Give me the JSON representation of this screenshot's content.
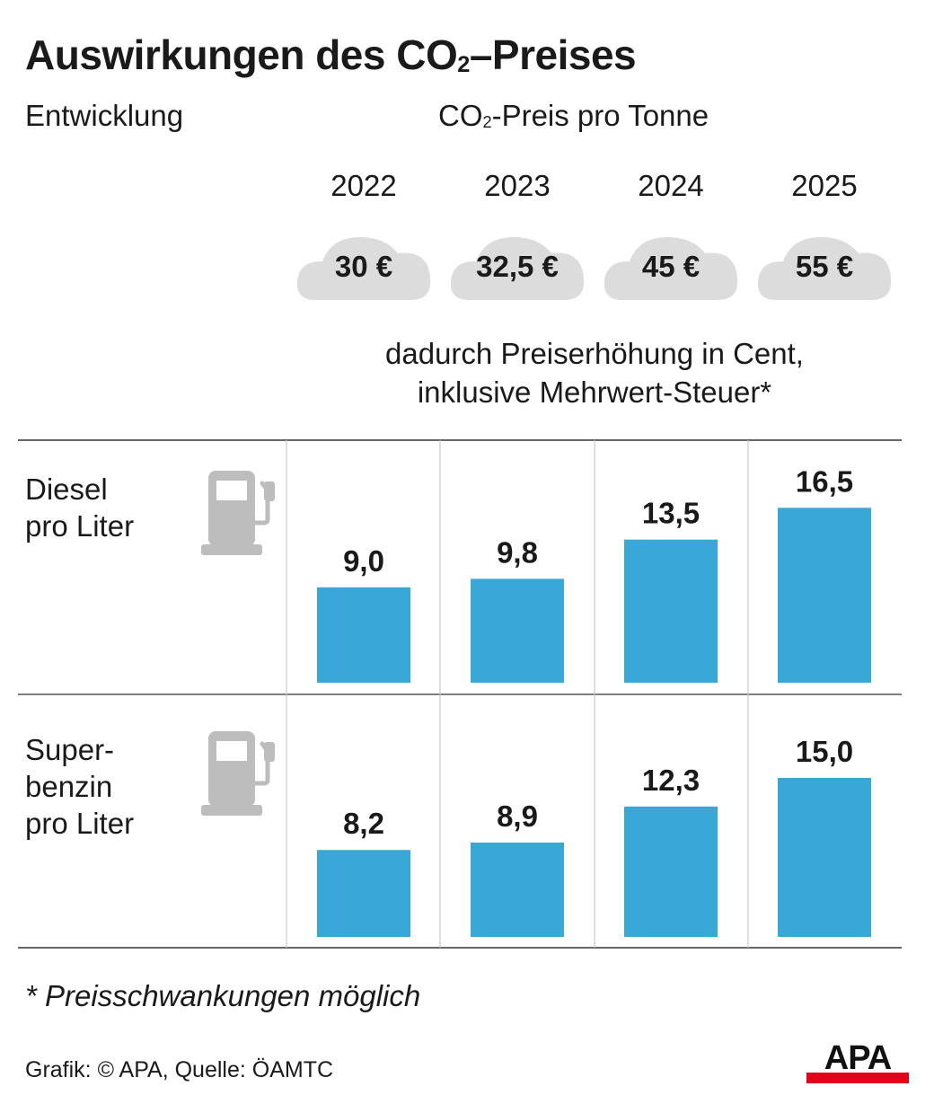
{
  "title_main": "Auswirkungen des CO",
  "title_sub": "2",
  "title_rest": "–Preises",
  "section_label": "Entwicklung",
  "price_header_main": "CO",
  "price_header_sub": "2",
  "price_header_rest": "-Preis pro Tonne",
  "years": [
    "2022",
    "2023",
    "2024",
    "2025"
  ],
  "co2_prices": [
    "30 €",
    "32,5 €",
    "45 €",
    "55 €"
  ],
  "note_line1": "dadurch Preiserhöhung in Cent,",
  "note_line2": "inklusive Mehrwert-Steuer*",
  "rows": [
    {
      "label_lines": [
        "Diesel",
        "pro Liter"
      ],
      "icon": "fuel-pump-icon"
    },
    {
      "label_lines": [
        "Super-",
        "benzin",
        "pro Liter"
      ],
      "icon": "fuel-pump-icon"
    }
  ],
  "footnote": "* Preisschwankungen möglich",
  "credit": "Grafik: © APA, Quelle: ÖAMTC",
  "logo_text": "APA",
  "colors": {
    "bar": "#3aa8d6",
    "cloud": "#dcdcdc",
    "icon": "#bdbdbd",
    "grid": "#c8c8c8",
    "rule": "#333333",
    "logo_red": "#e2001a"
  },
  "chart_data": {
    "type": "bar",
    "categories": [
      "2022",
      "2023",
      "2024",
      "2025"
    ],
    "series": [
      {
        "name": "Diesel pro Liter",
        "values": [
          9.0,
          9.8,
          13.5,
          16.5
        ],
        "labels": [
          "9,0",
          "9,8",
          "13,5",
          "16,5"
        ]
      },
      {
        "name": "Superbenzin pro Liter",
        "values": [
          8.2,
          8.9,
          12.3,
          15.0
        ],
        "labels": [
          "8,2",
          "8,9",
          "12,3",
          "15,0"
        ]
      }
    ],
    "ylabel": "Preiserhöhung in Cent",
    "grid": "vertical separators"
  }
}
